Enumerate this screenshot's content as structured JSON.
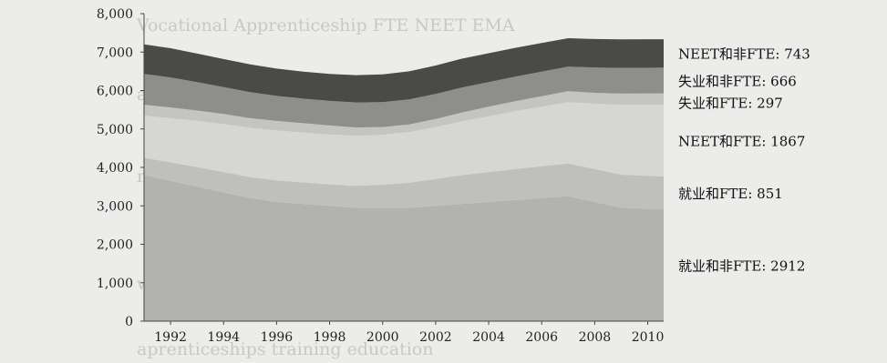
{
  "chart_data": {
    "type": "area",
    "stacked": true,
    "title": "",
    "xlabel": "",
    "ylabel": "",
    "ylim": [
      0,
      8000
    ],
    "yticks": [
      0,
      1000,
      2000,
      3000,
      4000,
      5000,
      6000,
      7000,
      8000
    ],
    "ytick_labels": [
      "0",
      "1,000",
      "2,000",
      "3,000",
      "4,000",
      "5,000",
      "6,000",
      "7,000",
      "8,000"
    ],
    "xlim": [
      1991,
      2010.6
    ],
    "xticks": [
      1992,
      1994,
      1996,
      1998,
      2000,
      2002,
      2004,
      2006,
      2008,
      2010
    ],
    "xtick_labels": [
      "1992",
      "1994",
      "1996",
      "1998",
      "2000",
      "2002",
      "2004",
      "2006",
      "2008",
      "2010"
    ],
    "x": [
      1991,
      1992,
      1993,
      1994,
      1995,
      1996,
      1997,
      1998,
      1999,
      2000,
      2001,
      2002,
      2003,
      2004,
      2005,
      2006,
      2007,
      2008,
      2009,
      2010.6
    ],
    "series": [
      {
        "name": "就业和非FTE: 2912",
        "color": "#b2b2b0",
        "values": [
          3800,
          3650,
          3500,
          3350,
          3200,
          3100,
          3050,
          3000,
          2950,
          2950,
          2950,
          3000,
          3050,
          3100,
          3150,
          3200,
          3250,
          3100,
          2950,
          2912
        ]
      },
      {
        "name": "就业和FTE: 851",
        "color": "#bfbfbd",
        "values": [
          450,
          480,
          510,
          530,
          550,
          560,
          560,
          560,
          570,
          600,
          650,
          700,
          750,
          780,
          810,
          830,
          850,
          860,
          860,
          851
        ]
      },
      {
        "name": "NEET和FTE: 1867",
        "color": "#d6d6d4",
        "values": [
          1100,
          1150,
          1200,
          1250,
          1280,
          1300,
          1300,
          1300,
          1300,
          1300,
          1320,
          1350,
          1400,
          1450,
          1500,
          1550,
          1600,
          1700,
          1820,
          1867
        ]
      },
      {
        "name": "失业和FTE: 297",
        "color": "#c4c4c2",
        "values": [
          280,
          280,
          270,
          260,
          250,
          250,
          240,
          230,
          220,
          200,
          200,
          210,
          230,
          250,
          260,
          270,
          280,
          280,
          290,
          297
        ]
      },
      {
        "name": "失业和非FTE: 666",
        "color": "#8e8e8c",
        "values": [
          800,
          780,
          740,
          700,
          680,
          650,
          640,
          640,
          650,
          650,
          650,
          650,
          650,
          640,
          640,
          640,
          640,
          660,
          670,
          666
        ]
      },
      {
        "name": "NEET和非FTE: 743",
        "color": "#4a4a48",
        "values": [
          770,
          760,
          740,
          730,
          720,
          710,
          700,
          700,
          710,
          720,
          730,
          740,
          750,
          750,
          750,
          745,
          740,
          740,
          742,
          743
        ]
      }
    ],
    "grid": false,
    "legend": "right"
  }
}
